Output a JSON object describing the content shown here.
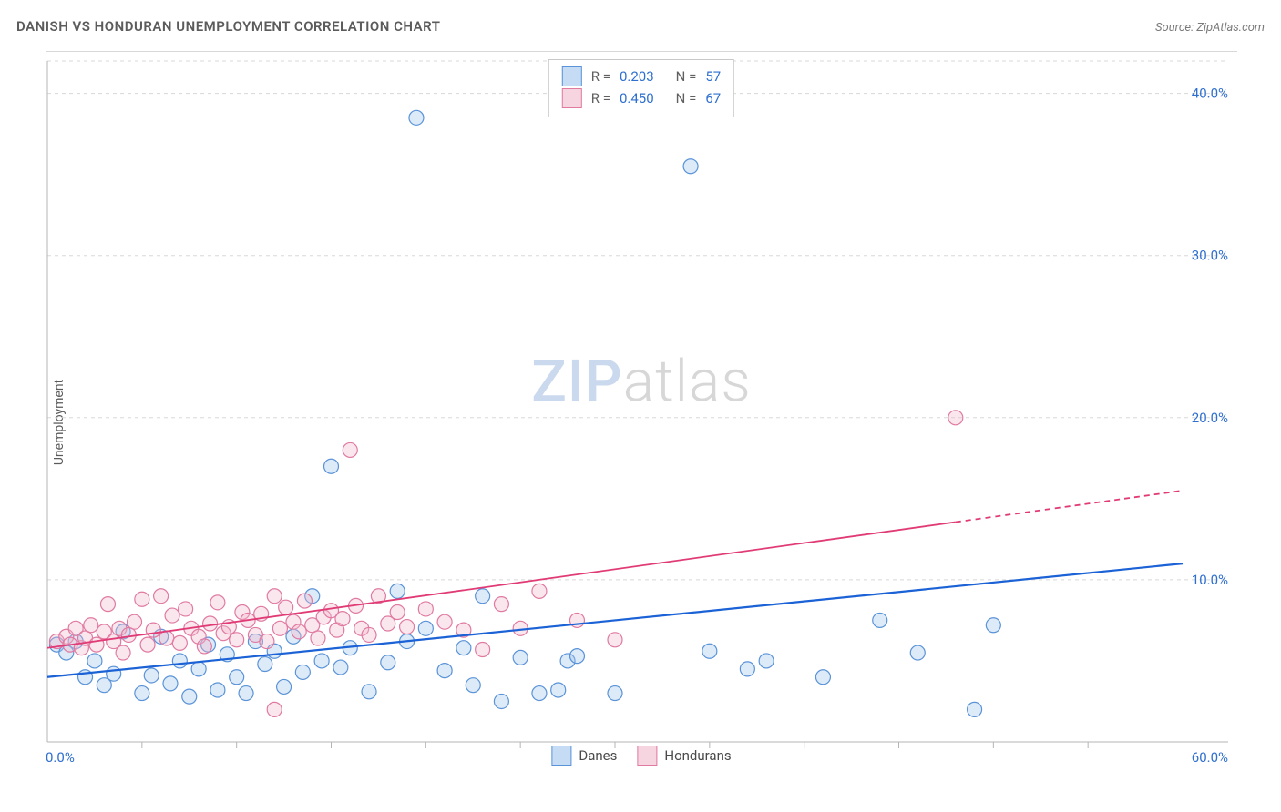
{
  "title": "DANISH VS HONDURAN UNEMPLOYMENT CORRELATION CHART",
  "source_label": "Source: ZipAtlas.com",
  "y_axis_label": "Unemployment",
  "watermark": {
    "part1": "ZIP",
    "part2": "atlas"
  },
  "chart": {
    "type": "scatter",
    "background_color": "#ffffff",
    "grid_color": "#d8d8d8",
    "axis_color": "#b5b5b5",
    "tick_label_color": "#2f6fd0",
    "xlim": [
      0,
      60
    ],
    "ylim": [
      0,
      42
    ],
    "x_labels": [
      {
        "v": 0,
        "text": "0.0%"
      },
      {
        "v": 60,
        "text": "60.0%"
      }
    ],
    "y_gridlines": [
      {
        "v": 10,
        "text": "10.0%"
      },
      {
        "v": 20,
        "text": "20.0%"
      },
      {
        "v": 30,
        "text": "30.0%"
      },
      {
        "v": 40,
        "text": "40.0%"
      }
    ],
    "x_minor_ticks": [
      5,
      10,
      15,
      20,
      25,
      30,
      35,
      40,
      45,
      50,
      55
    ],
    "marker_radius": 8,
    "marker_stroke_width": 1.2,
    "marker_fill_opacity": 0.35,
    "series": [
      {
        "name": "Danes",
        "color_fill": "#9fc2ea",
        "color_stroke": "#5a93d8",
        "trend": {
          "x1": 0,
          "y1": 4.0,
          "x2": 60,
          "y2": 11.0,
          "color": "#1b62d6",
          "width": 2.2,
          "dash_after_x": null
        },
        "points": [
          [
            0.5,
            6.0
          ],
          [
            1.0,
            5.5
          ],
          [
            1.5,
            6.2
          ],
          [
            2.0,
            4.0
          ],
          [
            2.5,
            5.0
          ],
          [
            3.0,
            3.5
          ],
          [
            3.5,
            4.2
          ],
          [
            4.0,
            6.8
          ],
          [
            5.0,
            3.0
          ],
          [
            5.5,
            4.1
          ],
          [
            6.0,
            6.5
          ],
          [
            6.5,
            3.6
          ],
          [
            7.0,
            5.0
          ],
          [
            7.5,
            2.8
          ],
          [
            8.0,
            4.5
          ],
          [
            8.5,
            6.0
          ],
          [
            9.0,
            3.2
          ],
          [
            9.5,
            5.4
          ],
          [
            10,
            4.0
          ],
          [
            10.5,
            3.0
          ],
          [
            11,
            6.2
          ],
          [
            11.5,
            4.8
          ],
          [
            12,
            5.6
          ],
          [
            12.5,
            3.4
          ],
          [
            13,
            6.5
          ],
          [
            13.5,
            4.3
          ],
          [
            14,
            9.0
          ],
          [
            14.5,
            5.0
          ],
          [
            15,
            17.0
          ],
          [
            15.5,
            4.6
          ],
          [
            16,
            5.8
          ],
          [
            17,
            3.1
          ],
          [
            18,
            4.9
          ],
          [
            18.5,
            9.3
          ],
          [
            19,
            6.2
          ],
          [
            19.5,
            38.5
          ],
          [
            20,
            7.0
          ],
          [
            21,
            4.4
          ],
          [
            22,
            5.8
          ],
          [
            22.5,
            3.5
          ],
          [
            23,
            9.0
          ],
          [
            24,
            2.5
          ],
          [
            25,
            5.2
          ],
          [
            26,
            3.0
          ],
          [
            27,
            3.2
          ],
          [
            27.5,
            5.0
          ],
          [
            28,
            5.3
          ],
          [
            30,
            3.0
          ],
          [
            34,
            35.5
          ],
          [
            35,
            5.6
          ],
          [
            37,
            4.5
          ],
          [
            38,
            5.0
          ],
          [
            41,
            4.0
          ],
          [
            44,
            7.5
          ],
          [
            49,
            2.0
          ],
          [
            50,
            7.2
          ],
          [
            46,
            5.5
          ]
        ]
      },
      {
        "name": "Hondurans",
        "color_fill": "#f1b8cb",
        "color_stroke": "#e07aa1",
        "trend": {
          "x1": 0,
          "y1": 5.8,
          "x2": 60,
          "y2": 15.5,
          "color": "#e13b76",
          "width": 1.8,
          "dash_after_x": 48
        },
        "points": [
          [
            0.5,
            6.2
          ],
          [
            1.0,
            6.5
          ],
          [
            1.2,
            6.0
          ],
          [
            1.5,
            7.0
          ],
          [
            1.8,
            5.8
          ],
          [
            2.0,
            6.4
          ],
          [
            2.3,
            7.2
          ],
          [
            2.6,
            6.0
          ],
          [
            3.0,
            6.8
          ],
          [
            3.2,
            8.5
          ],
          [
            3.5,
            6.2
          ],
          [
            3.8,
            7.0
          ],
          [
            4.0,
            5.5
          ],
          [
            4.3,
            6.6
          ],
          [
            4.6,
            7.4
          ],
          [
            5.0,
            8.8
          ],
          [
            5.3,
            6.0
          ],
          [
            5.6,
            6.9
          ],
          [
            6.0,
            9.0
          ],
          [
            6.3,
            6.4
          ],
          [
            6.6,
            7.8
          ],
          [
            7.0,
            6.1
          ],
          [
            7.3,
            8.2
          ],
          [
            7.6,
            7.0
          ],
          [
            8.0,
            6.5
          ],
          [
            8.3,
            5.9
          ],
          [
            8.6,
            7.3
          ],
          [
            9.0,
            8.6
          ],
          [
            9.3,
            6.7
          ],
          [
            9.6,
            7.1
          ],
          [
            10,
            6.3
          ],
          [
            10.3,
            8.0
          ],
          [
            10.6,
            7.5
          ],
          [
            11,
            6.6
          ],
          [
            11.3,
            7.9
          ],
          [
            11.6,
            6.2
          ],
          [
            12,
            9.0
          ],
          [
            12.3,
            7.0
          ],
          [
            12.6,
            8.3
          ],
          [
            13,
            7.4
          ],
          [
            13.3,
            6.8
          ],
          [
            13.6,
            8.7
          ],
          [
            14,
            7.2
          ],
          [
            14.3,
            6.4
          ],
          [
            14.6,
            7.7
          ],
          [
            15,
            8.1
          ],
          [
            15.3,
            6.9
          ],
          [
            15.6,
            7.6
          ],
          [
            16,
            18.0
          ],
          [
            16.3,
            8.4
          ],
          [
            16.6,
            7.0
          ],
          [
            17,
            6.6
          ],
          [
            17.5,
            9.0
          ],
          [
            18,
            7.3
          ],
          [
            18.5,
            8.0
          ],
          [
            19,
            7.1
          ],
          [
            20,
            8.2
          ],
          [
            21,
            7.4
          ],
          [
            22,
            6.9
          ],
          [
            23,
            5.7
          ],
          [
            24,
            8.5
          ],
          [
            25,
            7.0
          ],
          [
            26,
            9.3
          ],
          [
            28,
            7.5
          ],
          [
            30,
            6.3
          ],
          [
            12,
            2.0
          ],
          [
            48,
            20.0
          ]
        ]
      }
    ]
  },
  "legend_top": {
    "border_color": "#c9c9c9",
    "rows": [
      {
        "swatch_fill": "#c6dcf4",
        "swatch_stroke": "#5a93d8",
        "r_label": "R =",
        "r_value": "0.203",
        "n_label": "N =",
        "n_value": "57"
      },
      {
        "swatch_fill": "#f6d4e0",
        "swatch_stroke": "#e07aa1",
        "r_label": "R =",
        "r_value": "0.450",
        "n_label": "N =",
        "n_value": "67"
      }
    ]
  },
  "legend_bottom": {
    "items": [
      {
        "swatch_fill": "#c6dcf4",
        "swatch_stroke": "#5a93d8",
        "label": "Danes"
      },
      {
        "swatch_fill": "#f6d4e0",
        "swatch_stroke": "#e07aa1",
        "label": "Hondurans"
      }
    ]
  }
}
